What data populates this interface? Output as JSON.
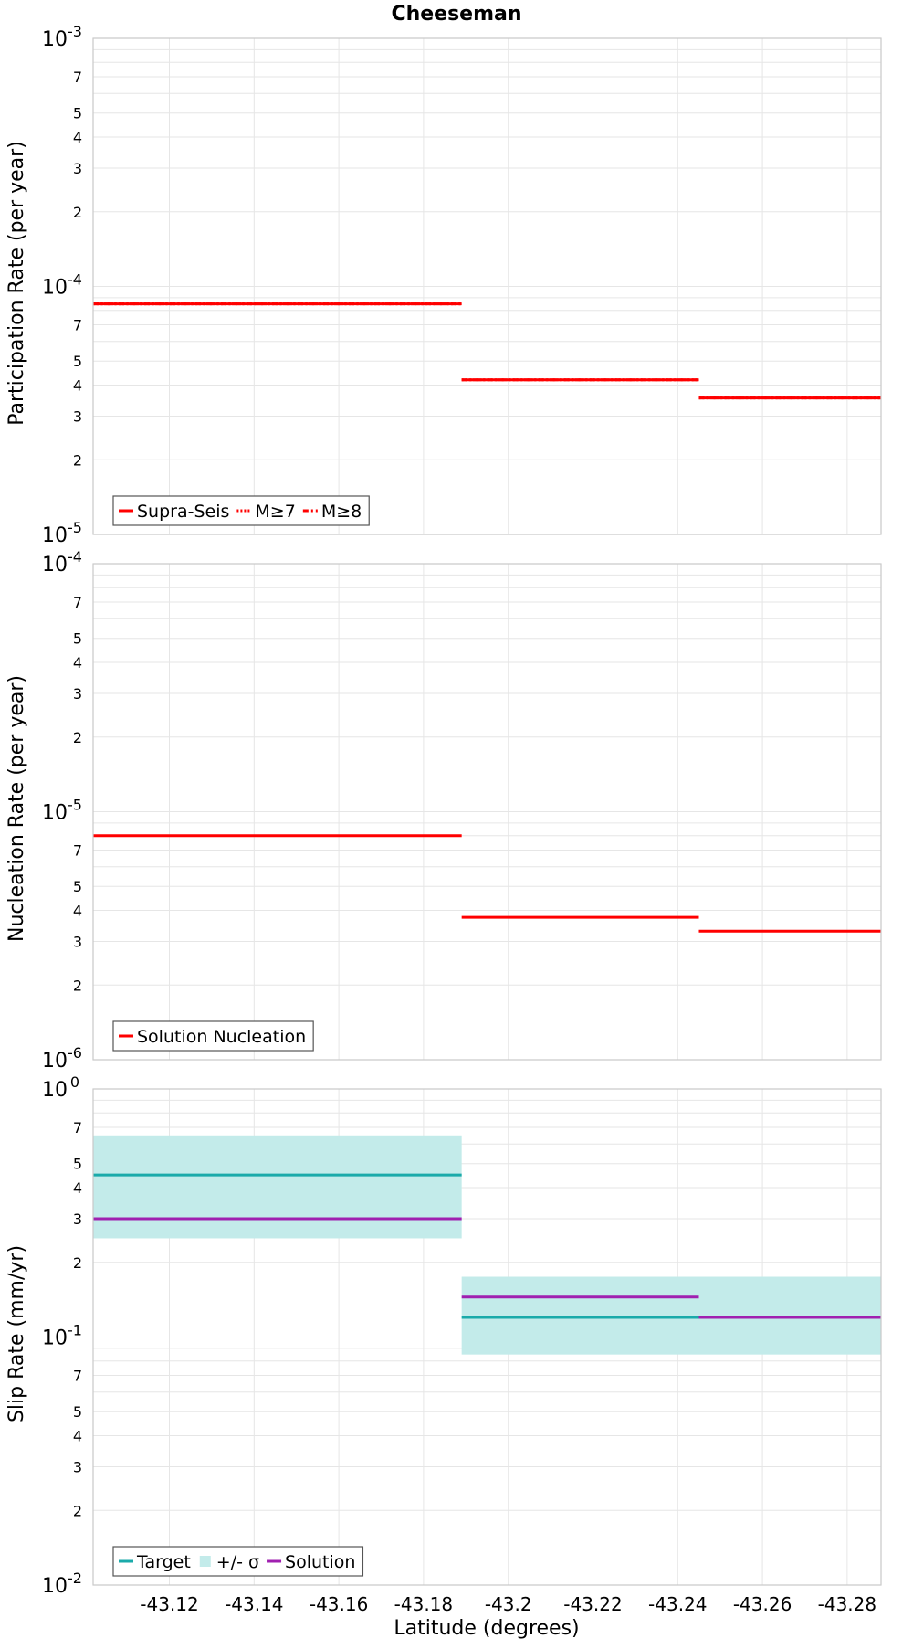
{
  "title": "Cheeseman",
  "xlabel": "Latitude (degrees)",
  "x_ticks": [
    "-43.12",
    "-43.14",
    "-43.16",
    "-43.18",
    "-43.2",
    "-43.22",
    "-43.24",
    "-43.26",
    "-43.28"
  ],
  "chart_data": [
    {
      "type": "line",
      "ylabel": "Participation Rate (per year)",
      "yscale": "log",
      "ylim": [
        1e-05,
        0.001
      ],
      "xlim": [
        -43.102,
        -43.288
      ],
      "grid": true,
      "legend_position": "bottom-left",
      "legend": [
        "Supra-Seis",
        "M≥7",
        "M≥8"
      ],
      "series": [
        {
          "name": "Supra-Seis",
          "color": "#ff0000",
          "style": "solid",
          "steps": [
            {
              "x0": -43.102,
              "x1": -43.189,
              "y": 8.5e-05
            },
            {
              "x0": -43.189,
              "x1": -43.245,
              "y": 4.2e-05
            },
            {
              "x0": -43.245,
              "x1": -43.288,
              "y": 3.55e-05
            }
          ]
        },
        {
          "name": "M≥7",
          "color": "#ff0000",
          "style": "dotted",
          "steps": [
            {
              "x0": -43.102,
              "x1": -43.189,
              "y": 8.5e-05
            },
            {
              "x0": -43.189,
              "x1": -43.245,
              "y": 4.2e-05
            },
            {
              "x0": -43.245,
              "x1": -43.288,
              "y": 3.55e-05
            }
          ]
        },
        {
          "name": "M≥8",
          "color": "#ff0000",
          "style": "dashdot",
          "steps": [
            {
              "x0": -43.102,
              "x1": -43.189,
              "y": 8.5e-05
            },
            {
              "x0": -43.189,
              "x1": -43.245,
              "y": 4.2e-05
            },
            {
              "x0": -43.245,
              "x1": -43.288,
              "y": 3.55e-05
            }
          ]
        }
      ]
    },
    {
      "type": "line",
      "ylabel": "Nucleation Rate (per year)",
      "yscale": "log",
      "ylim": [
        1e-06,
        0.0001
      ],
      "xlim": [
        -43.102,
        -43.288
      ],
      "grid": true,
      "legend_position": "bottom-left",
      "legend": [
        "Solution Nucleation"
      ],
      "series": [
        {
          "name": "Solution Nucleation",
          "color": "#ff0000",
          "style": "solid",
          "steps": [
            {
              "x0": -43.102,
              "x1": -43.189,
              "y": 8e-06
            },
            {
              "x0": -43.189,
              "x1": -43.245,
              "y": 3.75e-06
            },
            {
              "x0": -43.245,
              "x1": -43.288,
              "y": 3.3e-06
            }
          ]
        }
      ]
    },
    {
      "type": "line",
      "ylabel": "Slip Rate (mm/yr)",
      "yscale": "log",
      "ylim": [
        0.01,
        1
      ],
      "xlim": [
        -43.102,
        -43.288
      ],
      "grid": true,
      "legend_position": "bottom-left",
      "legend": [
        "Target",
        "+/- σ",
        "Solution"
      ],
      "bands": [
        {
          "name": "+/- σ",
          "color": "#c3ebea",
          "steps": [
            {
              "x0": -43.102,
              "x1": -43.189,
              "low": 0.25,
              "high": 0.65
            },
            {
              "x0": -43.189,
              "x1": -43.288,
              "low": 0.085,
              "high": 0.175
            }
          ]
        }
      ],
      "series": [
        {
          "name": "Target",
          "color": "#1aaaaa",
          "style": "solid",
          "steps": [
            {
              "x0": -43.102,
              "x1": -43.189,
              "y": 0.45
            },
            {
              "x0": -43.189,
              "x1": -43.288,
              "y": 0.12
            }
          ]
        },
        {
          "name": "Solution",
          "color": "#a020b0",
          "style": "solid",
          "steps": [
            {
              "x0": -43.102,
              "x1": -43.189,
              "y": 0.3
            },
            {
              "x0": -43.189,
              "x1": -43.245,
              "y": 0.145
            },
            {
              "x0": -43.245,
              "x1": -43.288,
              "y": 0.12
            }
          ]
        }
      ]
    }
  ]
}
